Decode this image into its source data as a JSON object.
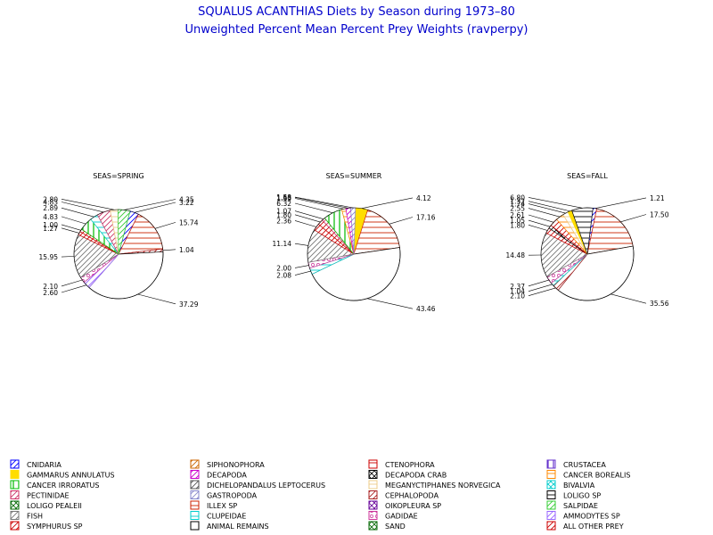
{
  "title": "SQUALUS ACANTHIAS Diets by Season during 1973–80",
  "subtitle": "Unweighted Percent Mean Percent Prey  Weights (ravperpy)",
  "colors": {
    "title": "#0000cc",
    "axis": "#000000"
  },
  "legend": [
    {
      "name": "CNIDARIA",
      "color": "#0000ff",
      "pattern": "diag"
    },
    {
      "name": "SIPHONOPHORA",
      "color": "#cc6600",
      "pattern": "diag"
    },
    {
      "name": "CTENOPHORA",
      "color": "#cc0000",
      "pattern": "hlines"
    },
    {
      "name": "CRUSTACEA",
      "color": "#6633cc",
      "pattern": "vlines"
    },
    {
      "name": "GAMMARUS ANNULATUS",
      "color": "#ffdd00",
      "pattern": "solid"
    },
    {
      "name": "DECAPODA",
      "color": "#cc00cc",
      "pattern": "diag"
    },
    {
      "name": "DECAPODA CRAB",
      "color": "#000000",
      "pattern": "cross"
    },
    {
      "name": "CANCER BOREALIS",
      "color": "#ff8800",
      "pattern": "hlines"
    },
    {
      "name": "CANCER IRRORATUS",
      "color": "#00bb00",
      "pattern": "vlines"
    },
    {
      "name": "DICHELOPANDALUS LEPTOCERUS",
      "color": "#555555",
      "pattern": "diag"
    },
    {
      "name": "MEGANYCTIPHANES NORVEGICA",
      "color": "#eecc88",
      "pattern": "hlines"
    },
    {
      "name": "BIVALVIA",
      "color": "#00cccc",
      "pattern": "cross"
    },
    {
      "name": "PECTINIDAE",
      "color": "#cc3366",
      "pattern": "diag"
    },
    {
      "name": "GASTROPODA",
      "color": "#8888cc",
      "pattern": "diag"
    },
    {
      "name": "CEPHALOPODA",
      "color": "#aa2222",
      "pattern": "diag"
    },
    {
      "name": "LOLIGO SP",
      "color": "#000000",
      "pattern": "hlines"
    },
    {
      "name": "LOLIGO PEALEII",
      "color": "#006600",
      "pattern": "cross"
    },
    {
      "name": "ILLEX SP",
      "color": "#cc2200",
      "pattern": "hlines"
    },
    {
      "name": "OIKOPLEURA SP",
      "color": "#660099",
      "pattern": "cross"
    },
    {
      "name": "SALPIDAE",
      "color": "#33cc33",
      "pattern": "diag"
    },
    {
      "name": "FISH",
      "color": "#777777",
      "pattern": "diag"
    },
    {
      "name": "CLUPEIDAE",
      "color": "#00cccc",
      "pattern": "hlines"
    },
    {
      "name": "GADIDAE",
      "color": "#cc3399",
      "pattern": "circle"
    },
    {
      "name": "AMMODYTES SP",
      "color": "#9966ff",
      "pattern": "diag"
    },
    {
      "name": "SYMPHURUS SP",
      "color": "#cc0000",
      "pattern": "diag"
    },
    {
      "name": "ANIMAL REMAINS",
      "color": "#000000",
      "pattern": "solid-white"
    },
    {
      "name": "SAND",
      "color": "#006600",
      "pattern": "cross"
    },
    {
      "name": "ALL OTHER PREY",
      "color": "#cc0000",
      "pattern": "diag"
    }
  ],
  "chart_data": [
    {
      "type": "pie",
      "title": "SEAS=SPRING",
      "slices": [
        {
          "category": "CNIDARIA",
          "value": 3.22
        },
        {
          "category": "ILLEX SP",
          "value": 15.74
        },
        {
          "category": "CEPHALOPODA",
          "value": 1.04
        },
        {
          "category": "ANIMAL REMAINS",
          "value": 37.29
        },
        {
          "category": "AMMODYTES SP",
          "value": 2.6
        },
        {
          "category": "GADIDAE",
          "value": 2.1
        },
        {
          "category": "FISH",
          "value": 15.95
        },
        {
          "category": "ALL OTHER PREY",
          "value": 1.27
        },
        {
          "category": "SYMPHURUS SP",
          "value": 1.0
        },
        {
          "category": "CANCER IRRORATUS",
          "value": 4.83
        },
        {
          "category": "CLUPEIDAE",
          "value": 2.89
        },
        {
          "category": "PECTINIDAE",
          "value": 4.83
        },
        {
          "category": "MEGANYCTIPHANES NORVEGICA",
          "value": 2.8
        },
        {
          "category": "SALPIDAE",
          "value": 4.35
        }
      ],
      "data_labels": [
        "1.27",
        "1.00",
        "4.83",
        "2.89",
        "4.83",
        "2.80",
        "4.35",
        "3.22",
        "15.74",
        "1.04",
        "37.29",
        "2.60",
        "2.10",
        "15.95"
      ]
    },
    {
      "type": "pie",
      "title": "SEAS=SUMMER",
      "slices": [
        {
          "category": "GAMMARUS ANNULATUS",
          "value": 4.12
        },
        {
          "category": "ILLEX SP",
          "value": 17.16
        },
        {
          "category": "ANIMAL REMAINS",
          "value": 43.46
        },
        {
          "category": "CLUPEIDAE",
          "value": 2.08
        },
        {
          "category": "GADIDAE",
          "value": 2.0
        },
        {
          "category": "FISH",
          "value": 11.14
        },
        {
          "category": "ALL OTHER PREY",
          "value": 2.36
        },
        {
          "category": "SYMPHURUS SP",
          "value": 1.8
        },
        {
          "category": "PECTINIDAE",
          "value": 1.07
        },
        {
          "category": "CANCER IRRORATUS",
          "value": 6.32
        },
        {
          "category": "CANCER BOREALIS",
          "value": 1.39
        },
        {
          "category": "DECAPODA",
          "value": 1.63
        },
        {
          "category": "GASTROPODA",
          "value": 1.58
        }
      ],
      "data_labels": [
        "2.36",
        "1.80",
        "1.07",
        "6.32",
        "1.39",
        "1.63",
        "1.58",
        "4.12",
        "17.16",
        "43.46",
        "2.08",
        "2.00",
        "11.14"
      ]
    },
    {
      "type": "pie",
      "title": "SEAS=FALL",
      "slices": [
        {
          "category": "CNIDARIA",
          "value": 1.21
        },
        {
          "category": "ILLEX SP",
          "value": 17.5
        },
        {
          "category": "ANIMAL REMAINS",
          "value": 35.56
        },
        {
          "category": "CEPHALOPODA",
          "value": 2.1
        },
        {
          "category": "CLUPEIDAE",
          "value": 1.04
        },
        {
          "category": "GADIDAE",
          "value": 2.37
        },
        {
          "category": "FISH",
          "value": 14.48
        },
        {
          "category": "ALL OTHER PREY",
          "value": 1.8
        },
        {
          "category": "DECAPODA CRAB",
          "value": 1.05
        },
        {
          "category": "SYMPHURUS SP",
          "value": 2.61
        },
        {
          "category": "CANCER BOREALIS",
          "value": 2.55
        },
        {
          "category": "MEGANYCTIPHANES NORVEGICA",
          "value": 1.74
        },
        {
          "category": "GAMMARUS ANNULATUS",
          "value": 1.32
        },
        {
          "category": "LOLIGO SP",
          "value": 6.8
        }
      ],
      "data_labels": [
        "1.05",
        "2.61",
        "2.55",
        "1.74",
        "1.32",
        "6.80",
        "1.21",
        "17.50",
        "35.56",
        "2.10",
        "1.04",
        "2.37",
        "14.48",
        "1.80"
      ]
    }
  ]
}
